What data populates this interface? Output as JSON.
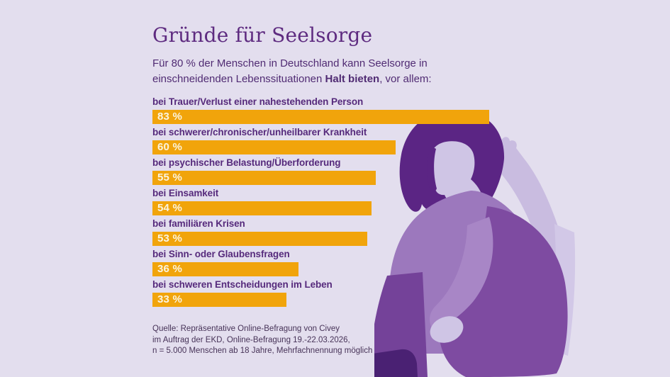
{
  "page": {
    "background_color": "#E3DEEE",
    "language": "de"
  },
  "header": {
    "title": "Gründe für Seelsorge",
    "subtitle_line1": "Für 80 % der Menschen in Deutschland kann Seelsorge in",
    "subtitle_line2_prefix": "einschneidenden Lebenssituationen ",
    "subtitle_line2_bold": "Halt bieten",
    "subtitle_line2_suffix": ", vor allem:"
  },
  "chart_data": {
    "type": "bar",
    "orientation": "horizontal",
    "title": "Gründe für Seelsorge",
    "unit": "%",
    "xlim": [
      0,
      100
    ],
    "grid": false,
    "legend": false,
    "categories": [
      "bei Trauer/Verlust einer nahestehenden Person",
      "bei schwerer/chronischer/unheilbarer Krankheit",
      "bei psychischer Belastung/Überforderung",
      "bei Einsamkeit",
      "bei familiären Krisen",
      "bei Sinn- oder Glaubensfragen",
      "bei schweren Entscheidungen im Leben"
    ],
    "values": [
      83,
      60,
      55,
      54,
      53,
      36,
      33
    ],
    "value_labels": [
      "83 %",
      "60 %",
      "55 %",
      "54 %",
      "53 %",
      "36 %",
      "33 %"
    ],
    "bar_color": "#F1A40B",
    "category_label_color": "#562A7C",
    "value_text_color": "#FBF4DF"
  },
  "source": {
    "line1": "Quelle: Repräsentative Online-Befragung von Civey",
    "line2": "im Auftrag der EKD, Online-Befragung 19.-22.03.2026,",
    "line3": "n = 5.000 Menschen ab 18 Jahre, Mehrfachnennung möglich"
  },
  "illustration": {
    "description": "person sitting hugging knees with hand on head",
    "colors": {
      "hair": "#5B2584",
      "skin": "#CFC5E5",
      "raised_arm": "#C9BCE0",
      "torso": "#9C78BD",
      "sleeve": "#A886C6",
      "legs": "#7E4BA1",
      "shin_highlight": "#D2C8E7",
      "lower_leg": "#744299",
      "shoe": "#4A2173"
    }
  },
  "colors": {
    "accent_orange": "#F1A40B",
    "title_purple": "#5E2B80",
    "text_purple": "#502B73",
    "source_text_color": "#473358"
  }
}
